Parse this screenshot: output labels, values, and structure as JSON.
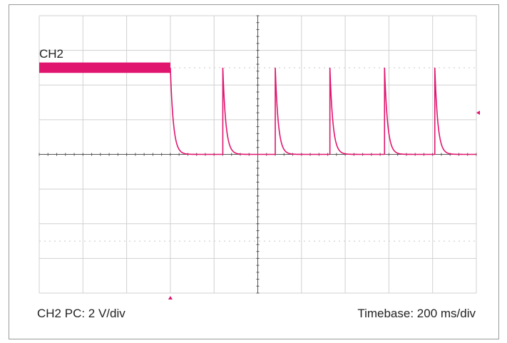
{
  "channel_label": "CH2",
  "footer": {
    "scale": "CH2 PC: 2 V/div",
    "timebase": "Timebase: 200 ms/div"
  },
  "colors": {
    "trace": "#e0156e",
    "grid": "#d0d0d0",
    "axis": "#555555",
    "dotted_reference": "#c8c8c8"
  },
  "chart_data": {
    "type": "line",
    "title": "",
    "xlabel": "Timebase: 200 ms/div",
    "ylabel": "CH2 PC: 2 V/div",
    "x_unit": "div",
    "y_unit": "div",
    "xlim": [
      0,
      10
    ],
    "ylim": [
      -4,
      4
    ],
    "x_divisions": 10,
    "y_divisions": 8,
    "grid": true,
    "series": [
      {
        "name": "CH2",
        "high_level_div": 2.5,
        "baseline_div": 0,
        "initial_high_until_div": 3.0,
        "initial_noise_band_div": 0.3,
        "pulse_starts_div": [
          4.2,
          5.4,
          6.65,
          7.9,
          9.05
        ],
        "pulse_decay_tau_div": 0.07,
        "end_div": 10
      }
    ],
    "trigger_x_div": 3.0,
    "trigger_y_div": 1.2
  }
}
